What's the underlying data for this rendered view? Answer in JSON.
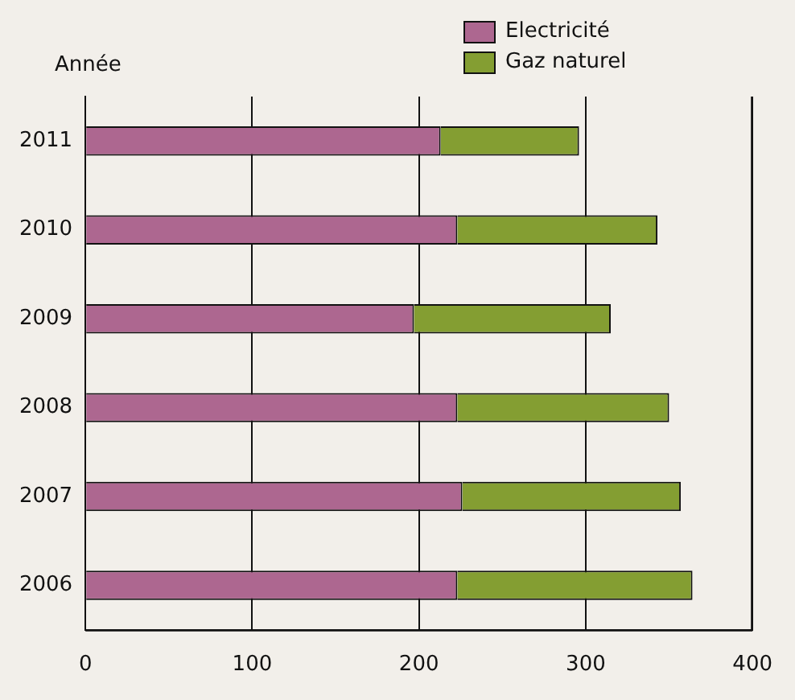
{
  "chart_data": {
    "type": "bar",
    "orientation": "horizontal",
    "stacked": true,
    "ylabel": "Année",
    "categories": [
      "2011",
      "2010",
      "2009",
      "2008",
      "2007",
      "2006"
    ],
    "series": [
      {
        "name": "Electricité",
        "color": "#ad6790",
        "values": [
          213,
          223,
          197,
          223,
          226,
          223
        ]
      },
      {
        "name": "Gaz naturel",
        "color": "#849e32",
        "values": [
          83,
          120,
          118,
          127,
          131,
          141
        ]
      }
    ],
    "xlim": [
      0,
      400
    ],
    "xticks": [
      0,
      100,
      200,
      300,
      400
    ],
    "grid": "x",
    "legend": "top right"
  }
}
